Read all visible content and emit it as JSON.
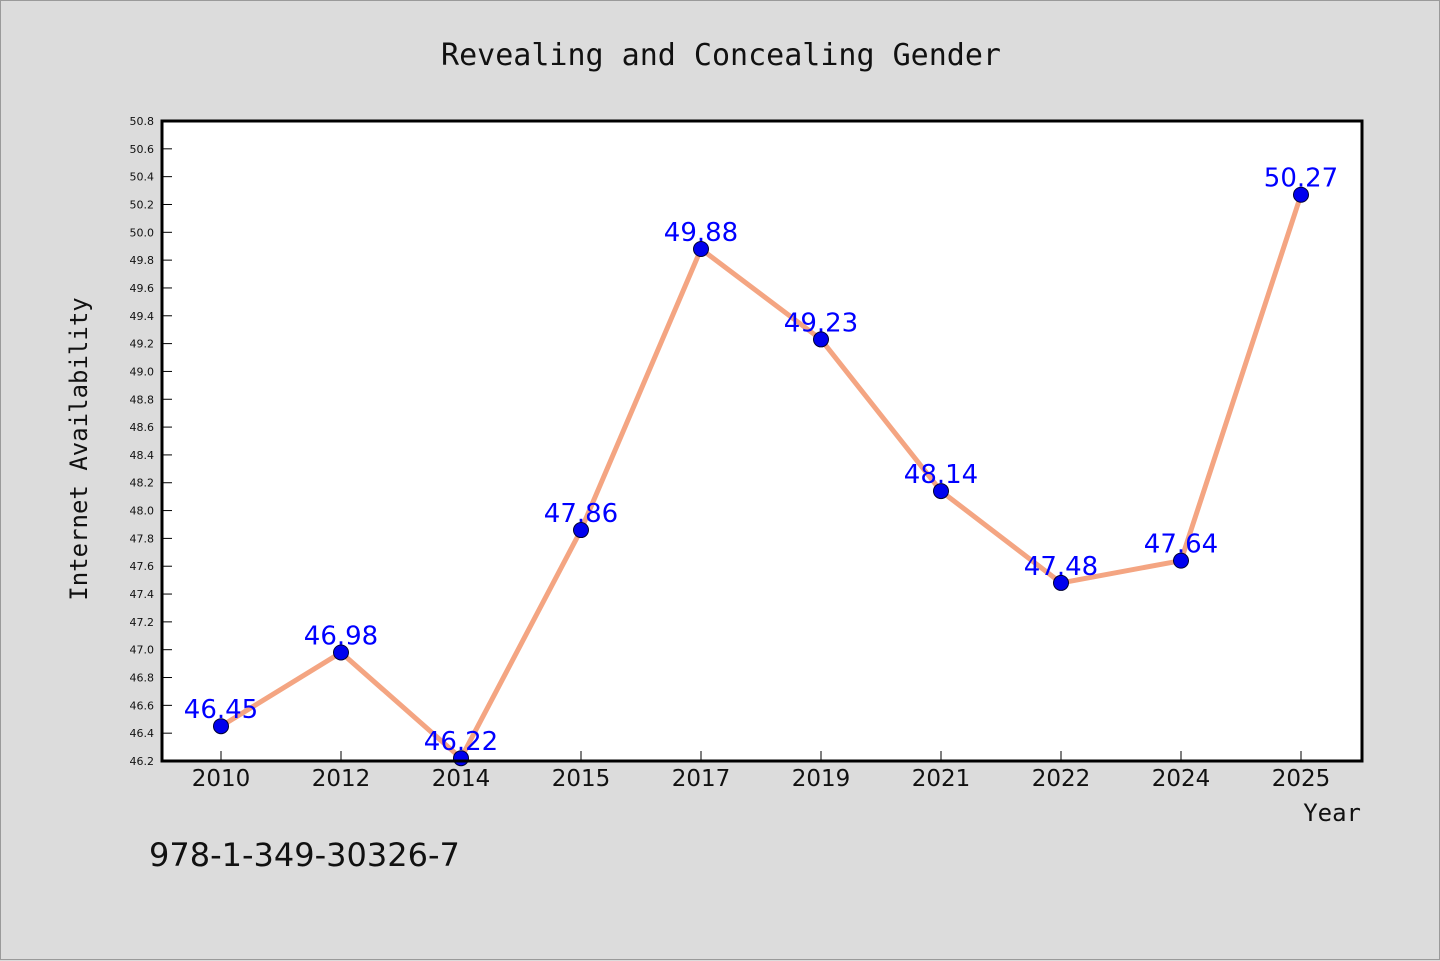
{
  "chart_data": {
    "type": "line",
    "title": "Revealing and Concealing Gender",
    "xlabel": "Year",
    "ylabel": "Internet Availability",
    "categories": [
      "2010",
      "2012",
      "2014",
      "2015",
      "2017",
      "2019",
      "2021",
      "2022",
      "2024",
      "2025"
    ],
    "series": [
      {
        "values": [
          46.45,
          46.98,
          46.22,
          47.86,
          49.88,
          49.23,
          48.14,
          47.48,
          47.64,
          50.27
        ],
        "data_labels": [
          "46.45",
          "46.98",
          "46.22",
          "47.86",
          "49.88",
          "49.23",
          "48.14",
          "47.48",
          "47.64",
          "50.27"
        ]
      }
    ],
    "ylim": [
      46.2,
      50.8
    ],
    "yticks": [
      "46.2",
      "46.4",
      "46.6",
      "46.8",
      "47.0",
      "47.2",
      "47.4",
      "47.6",
      "47.8",
      "48.0",
      "48.2",
      "48.4",
      "48.6",
      "48.8",
      "49.0",
      "49.2",
      "49.4",
      "49.6",
      "49.8",
      "50.0",
      "50.2",
      "50.4",
      "50.6",
      "50.8"
    ],
    "grid": false,
    "legend": "none",
    "colors": {
      "line": "#f4a582",
      "marker": "#0000ee",
      "marker_edge": "#000033",
      "data_label": "#0000ff",
      "plot_background": "#ffffff",
      "figure_background": "#dcdcdc"
    }
  },
  "footer": {
    "isbn": "978-1-349-30326-7"
  }
}
